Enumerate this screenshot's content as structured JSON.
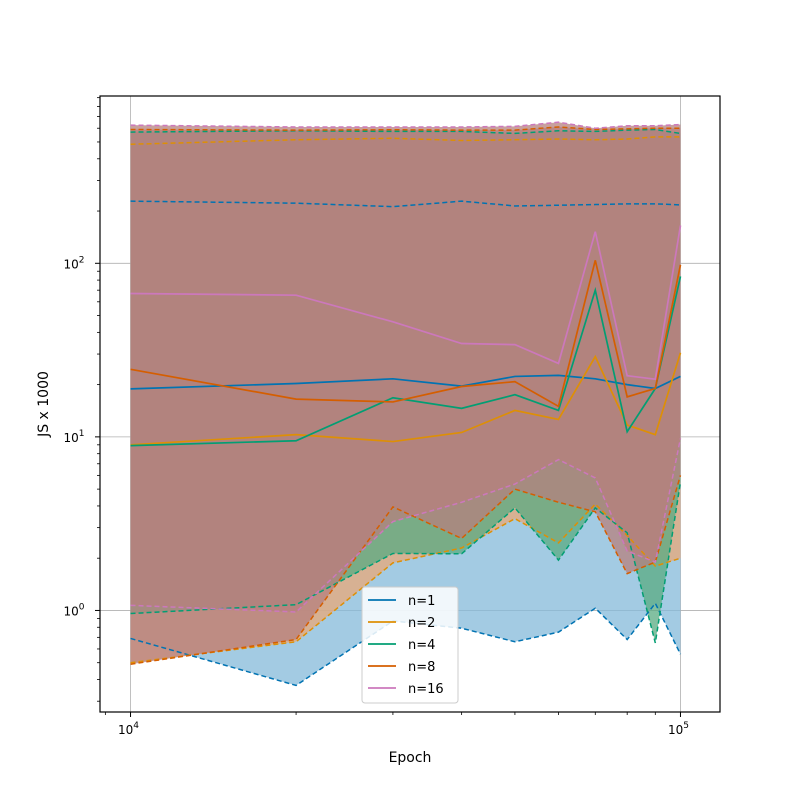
{
  "chart_data": {
    "type": "line",
    "title": "",
    "xlabel": "Epoch",
    "ylabel": "JS x 1000",
    "xscale": "log",
    "yscale": "log",
    "xlim": [
      8800,
      118000
    ],
    "ylim": [
      0.26,
      920
    ],
    "grid": true,
    "legend_position": "lower-center",
    "x": [
      10000,
      20000,
      30000,
      40000,
      50000,
      60000,
      70000,
      80000,
      90000,
      100000
    ],
    "x_tick_labels": [
      {
        "value": 10000,
        "base": "10",
        "exp": "4"
      },
      {
        "value": 100000,
        "base": "10",
        "exp": "5"
      }
    ],
    "y_tick_labels": [
      {
        "value": 1,
        "base": "10",
        "exp": "0"
      },
      {
        "value": 10,
        "base": "10",
        "exp": "1"
      },
      {
        "value": 100,
        "base": "10",
        "exp": "2"
      }
    ],
    "series": [
      {
        "name": "n=1",
        "color": "#0173b2",
        "fill": "#84bad9",
        "mean": [
          18.9,
          20.3,
          21.6,
          19.6,
          22.3,
          22.6,
          21.6,
          20.0,
          19.0,
          22.3
        ],
        "upper": [
          228,
          222,
          212,
          228,
          214,
          216,
          218,
          220,
          220,
          217
        ],
        "lower": [
          0.69,
          0.37,
          0.87,
          0.79,
          0.66,
          0.75,
          1.03,
          0.68,
          1.1,
          0.56
        ]
      },
      {
        "name": "n=2",
        "color": "#de8f05",
        "fill": "#e8a878",
        "mean": [
          9.0,
          10.3,
          9.4,
          10.6,
          14.2,
          12.6,
          29.0,
          11.7,
          10.3,
          30.5
        ],
        "upper": [
          485,
          515,
          525,
          510,
          515,
          520,
          515,
          520,
          535,
          535
        ],
        "lower": [
          0.5,
          0.66,
          1.88,
          2.29,
          3.38,
          2.45,
          4.1,
          2.7,
          1.8,
          2.0
        ]
      },
      {
        "name": "n=4",
        "color": "#029e73",
        "fill": "#5aab82",
        "mean": [
          8.9,
          9.5,
          16.8,
          14.6,
          17.5,
          14.2,
          70.0,
          10.7,
          19.0,
          84.0
        ],
        "upper": [
          570,
          580,
          575,
          575,
          560,
          580,
          575,
          585,
          590,
          560
        ],
        "lower": [
          0.96,
          1.08,
          2.13,
          2.12,
          3.9,
          1.95,
          3.9,
          2.8,
          0.65,
          5.5
        ]
      },
      {
        "name": "n=8",
        "color": "#d55e00",
        "fill": "#b5807d",
        "mean": [
          24.5,
          16.5,
          15.9,
          19.5,
          20.8,
          15.0,
          104.0,
          17.0,
          19.0,
          98.0
        ],
        "upper": [
          590,
          585,
          588,
          585,
          585,
          610,
          590,
          595,
          600,
          600
        ],
        "lower": [
          0.49,
          0.68,
          3.95,
          2.6,
          5.0,
          4.2,
          3.7,
          1.63,
          1.9,
          6.0
        ]
      },
      {
        "name": "n=16",
        "color": "#cc78bc",
        "fill": "#b5807d",
        "mean": [
          67.0,
          65.5,
          46.0,
          34.5,
          34.0,
          26.5,
          152.0,
          22.5,
          21.5,
          165.0
        ],
        "upper": [
          625,
          610,
          610,
          610,
          615,
          650,
          600,
          620,
          620,
          630
        ],
        "lower": [
          1.07,
          0.98,
          3.25,
          4.2,
          5.35,
          7.4,
          5.8,
          2.2,
          1.9,
          9.8
        ]
      }
    ]
  }
}
